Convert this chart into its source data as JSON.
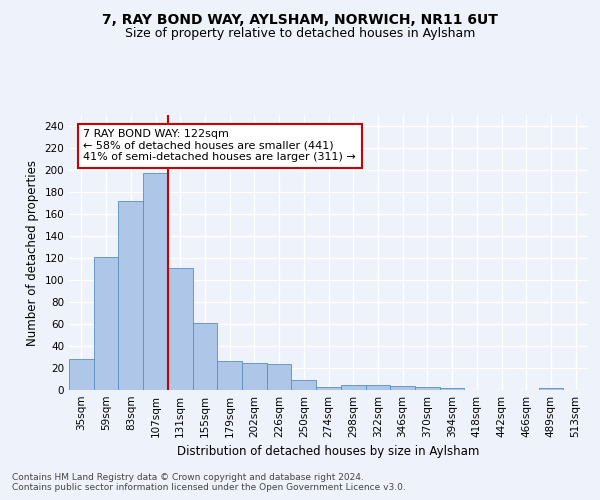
{
  "title_line1": "7, RAY BOND WAY, AYLSHAM, NORWICH, NR11 6UT",
  "title_line2": "Size of property relative to detached houses in Aylsham",
  "xlabel": "Distribution of detached houses by size in Aylsham",
  "ylabel": "Number of detached properties",
  "categories": [
    "35sqm",
    "59sqm",
    "83sqm",
    "107sqm",
    "131sqm",
    "155sqm",
    "179sqm",
    "202sqm",
    "226sqm",
    "250sqm",
    "274sqm",
    "298sqm",
    "322sqm",
    "346sqm",
    "370sqm",
    "394sqm",
    "418sqm",
    "442sqm",
    "466sqm",
    "489sqm",
    "513sqm"
  ],
  "values": [
    28,
    121,
    172,
    197,
    111,
    61,
    26,
    25,
    24,
    9,
    3,
    5,
    5,
    4,
    3,
    2,
    0,
    0,
    0,
    2,
    0
  ],
  "bar_color": "#aec6e8",
  "bar_edge_color": "#5a8fc0",
  "vline_x": 3.5,
  "vline_color": "#cc0000",
  "annotation_text": "7 RAY BOND WAY: 122sqm\n← 58% of detached houses are smaller (441)\n41% of semi-detached houses are larger (311) →",
  "annotation_box_color": "#ffffff",
  "annotation_box_edge": "#cc0000",
  "ylim": [
    0,
    250
  ],
  "yticks": [
    0,
    20,
    40,
    60,
    80,
    100,
    120,
    140,
    160,
    180,
    200,
    220,
    240
  ],
  "footer_text": "Contains HM Land Registry data © Crown copyright and database right 2024.\nContains public sector information licensed under the Open Government Licence v3.0.",
  "background_color": "#eef2fa",
  "grid_color": "#ffffff",
  "title_fontsize": 10,
  "subtitle_fontsize": 9,
  "axis_label_fontsize": 8.5,
  "tick_fontsize": 7.5,
  "annotation_fontsize": 8,
  "footer_fontsize": 6.5
}
